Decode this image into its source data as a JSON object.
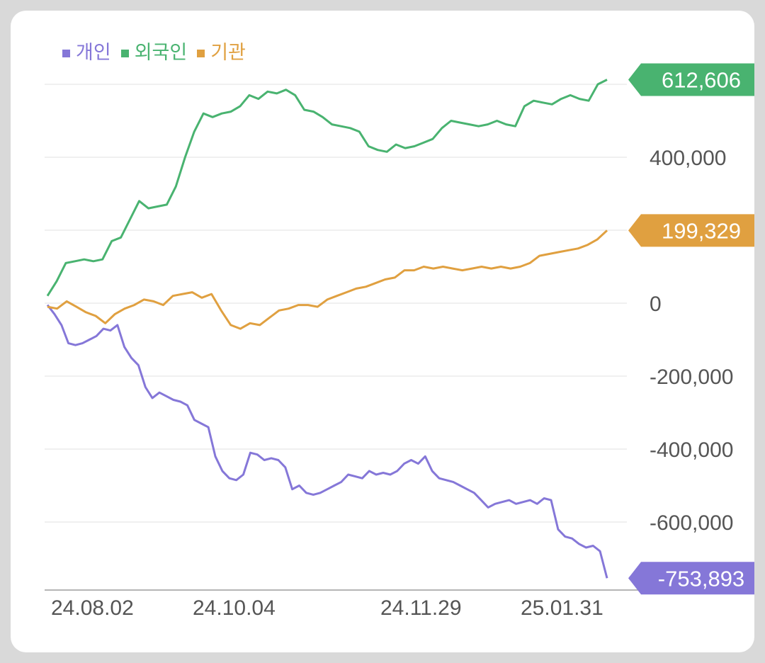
{
  "chart_data": {
    "type": "line",
    "legend_position": "top-left",
    "grid": true,
    "ylim": [
      -780000,
      680000
    ],
    "y_ticks": [
      {
        "value": 400000,
        "label": "400,000"
      },
      {
        "value": 0,
        "label": "0"
      },
      {
        "value": -200000,
        "label": "-200,000"
      },
      {
        "value": -400000,
        "label": "-400,000"
      },
      {
        "value": -600000,
        "label": "-600,000"
      }
    ],
    "y_grid": [
      600000,
      400000,
      200000,
      0,
      -200000,
      -400000,
      -600000
    ],
    "x_tick_labels": [
      "24.08.02",
      "24.10.04",
      "24.11.29",
      "25.01.31"
    ],
    "series": [
      {
        "name": "개인",
        "color": "#8577d8",
        "last_label": "-753,893",
        "values": [
          -5000,
          -30000,
          -60000,
          -110000,
          -115000,
          -110000,
          -100000,
          -90000,
          -70000,
          -75000,
          -60000,
          -120000,
          -150000,
          -170000,
          -230000,
          -260000,
          -245000,
          -255000,
          -265000,
          -270000,
          -280000,
          -320000,
          -330000,
          -340000,
          -420000,
          -460000,
          -480000,
          -485000,
          -470000,
          -410000,
          -415000,
          -430000,
          -425000,
          -430000,
          -450000,
          -510000,
          -500000,
          -520000,
          -525000,
          -520000,
          -510000,
          -500000,
          -490000,
          -470000,
          -475000,
          -480000,
          -460000,
          -470000,
          -465000,
          -470000,
          -460000,
          -440000,
          -430000,
          -440000,
          -420000,
          -460000,
          -480000,
          -485000,
          -490000,
          -500000,
          -510000,
          -520000,
          -540000,
          -560000,
          -550000,
          -545000,
          -540000,
          -550000,
          -545000,
          -540000,
          -550000,
          -535000,
          -540000,
          -620000,
          -640000,
          -645000,
          -660000,
          -670000,
          -665000,
          -680000,
          -753893
        ]
      },
      {
        "name": "외국인",
        "color": "#49b370",
        "last_label": "612,606",
        "values": [
          20000,
          60000,
          110000,
          115000,
          120000,
          115000,
          120000,
          170000,
          180000,
          230000,
          280000,
          260000,
          265000,
          270000,
          320000,
          400000,
          470000,
          520000,
          510000,
          520000,
          525000,
          540000,
          570000,
          560000,
          580000,
          575000,
          585000,
          570000,
          530000,
          525000,
          510000,
          490000,
          485000,
          480000,
          470000,
          430000,
          420000,
          415000,
          435000,
          425000,
          430000,
          440000,
          450000,
          480000,
          500000,
          495000,
          490000,
          485000,
          490000,
          500000,
          490000,
          485000,
          540000,
          555000,
          550000,
          545000,
          560000,
          570000,
          560000,
          555000,
          600000,
          612606
        ]
      },
      {
        "name": "기관",
        "color": "#e0a040",
        "last_label": "199,329",
        "values": [
          -10000,
          -15000,
          5000,
          -10000,
          -25000,
          -35000,
          -55000,
          -30000,
          -15000,
          -5000,
          10000,
          5000,
          -5000,
          20000,
          25000,
          30000,
          15000,
          25000,
          -20000,
          -60000,
          -70000,
          -55000,
          -60000,
          -40000,
          -20000,
          -15000,
          -5000,
          -5000,
          -10000,
          10000,
          20000,
          30000,
          40000,
          45000,
          55000,
          65000,
          70000,
          90000,
          90000,
          100000,
          95000,
          100000,
          95000,
          90000,
          95000,
          100000,
          95000,
          100000,
          95000,
          100000,
          110000,
          130000,
          135000,
          140000,
          145000,
          150000,
          160000,
          175000,
          199329
        ]
      }
    ]
  }
}
